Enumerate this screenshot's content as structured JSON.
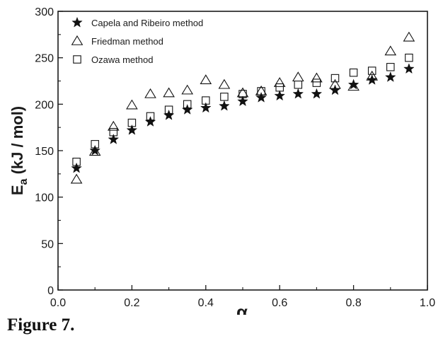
{
  "caption": "Figure 7.",
  "chart_data": {
    "type": "scatter",
    "xlabel": "α",
    "ylabel_main": "E",
    "ylabel_sub": "a",
    "ylabel_rest": " (kJ / mol)",
    "xlim": [
      0.0,
      1.0
    ],
    "ylim": [
      0,
      300
    ],
    "xticks": [
      "0.0",
      "0.2",
      "0.4",
      "0.6",
      "0.8",
      "1.0"
    ],
    "yticks": [
      "0",
      "50",
      "100",
      "150",
      "200",
      "250",
      "300"
    ],
    "grid": false,
    "legend_position": "top-left",
    "series": [
      {
        "name": "Capela and Ribeiro method",
        "marker": "filled-star",
        "color": "#111111",
        "x": [
          0.05,
          0.1,
          0.15,
          0.2,
          0.25,
          0.3,
          0.35,
          0.4,
          0.45,
          0.5,
          0.55,
          0.6,
          0.65,
          0.7,
          0.75,
          0.8,
          0.85,
          0.9,
          0.95
        ],
        "y": [
          131,
          150,
          162,
          172,
          181,
          188,
          194,
          196,
          198,
          203,
          207,
          209,
          211,
          211,
          215,
          221,
          226,
          229,
          238
        ]
      },
      {
        "name": "Friedman method",
        "marker": "open-triangle",
        "color": "#111111",
        "x": [
          0.05,
          0.1,
          0.15,
          0.2,
          0.25,
          0.3,
          0.35,
          0.4,
          0.45,
          0.5,
          0.55,
          0.6,
          0.65,
          0.7,
          0.75,
          0.8,
          0.85,
          0.9,
          0.95
        ],
        "y": [
          119,
          149,
          176,
          199,
          211,
          212,
          215,
          226,
          221,
          212,
          214,
          223,
          229,
          228,
          221,
          219,
          230,
          257,
          272
        ]
      },
      {
        "name": "Ozawa method",
        "marker": "open-square",
        "color": "#111111",
        "x": [
          0.05,
          0.1,
          0.15,
          0.2,
          0.25,
          0.3,
          0.35,
          0.4,
          0.45,
          0.5,
          0.55,
          0.6,
          0.65,
          0.7,
          0.75,
          0.8,
          0.85,
          0.9,
          0.95
        ],
        "y": [
          138,
          157,
          170,
          180,
          187,
          194,
          200,
          204,
          208,
          211,
          214,
          218,
          221,
          223,
          228,
          234,
          236,
          240,
          250
        ]
      }
    ]
  }
}
